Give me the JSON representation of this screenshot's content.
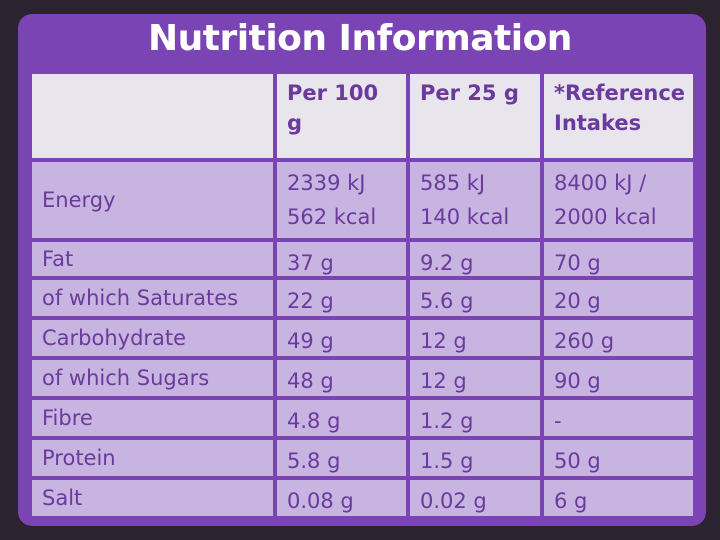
{
  "header": {
    "title": "Nutrition Information"
  },
  "table": {
    "columns": [
      "Per 100 g",
      "Per 25 g",
      "*Reference Intakes"
    ],
    "rows": [
      {
        "label": "Energy",
        "cells": [
          [
            "2339 kJ",
            "562 kcal"
          ],
          [
            "585 kJ",
            "140 kcal"
          ],
          [
            "8400 kJ /",
            "2000 kcal"
          ]
        ]
      },
      {
        "label": "Fat",
        "cells": [
          [
            "37 g"
          ],
          [
            "9.2 g"
          ],
          [
            "70 g"
          ]
        ]
      },
      {
        "label": "of which Saturates",
        "cells": [
          [
            "22 g"
          ],
          [
            "5.6 g"
          ],
          [
            "20 g"
          ]
        ]
      },
      {
        "label": "Carbohydrate",
        "cells": [
          [
            "49 g"
          ],
          [
            "12 g"
          ],
          [
            "260 g"
          ]
        ]
      },
      {
        "label": "of which Sugars",
        "cells": [
          [
            "48 g"
          ],
          [
            "12 g"
          ],
          [
            "90 g"
          ]
        ]
      },
      {
        "label": "Fibre",
        "cells": [
          [
            "4.8 g"
          ],
          [
            "1.2 g"
          ],
          [
            "-"
          ]
        ]
      },
      {
        "label": "Protein",
        "cells": [
          [
            "5.8 g"
          ],
          [
            "1.5 g"
          ],
          [
            "50 g"
          ]
        ]
      },
      {
        "label": "Salt",
        "cells": [
          [
            "0.08 g"
          ],
          [
            "0.02 g"
          ],
          [
            "6 g"
          ]
        ]
      }
    ]
  }
}
